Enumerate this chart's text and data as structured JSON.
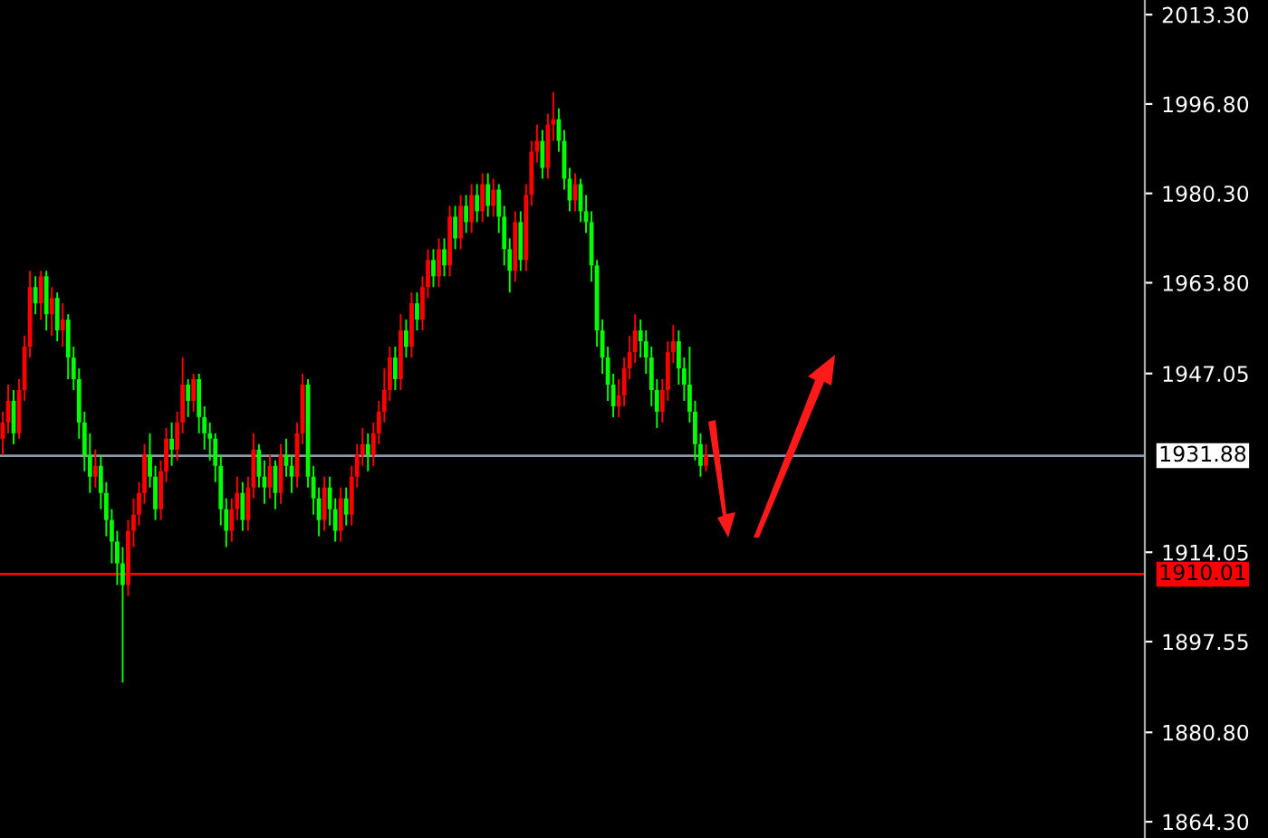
{
  "chart_data": {
    "type": "candlestick",
    "categories": [
      null,
      null,
      null,
      null,
      null,
      null,
      null,
      null,
      null,
      null,
      null,
      null,
      null,
      null,
      null,
      null,
      null,
      null,
      null,
      null,
      null,
      null,
      null,
      null,
      null,
      null,
      null,
      null,
      null,
      null,
      null,
      null,
      null,
      null,
      null,
      null,
      null,
      null,
      null,
      null,
      null,
      null,
      null,
      null,
      null,
      null,
      null,
      null,
      null,
      null,
      null,
      null,
      null,
      null,
      null,
      null,
      null,
      null,
      null,
      null,
      null,
      null,
      null,
      null,
      null,
      null,
      null,
      null,
      null,
      null,
      null,
      null,
      null,
      null,
      null,
      null,
      null,
      null,
      null,
      null,
      null,
      null,
      null,
      null,
      null,
      null,
      null,
      null,
      null,
      null,
      null,
      null,
      null,
      null,
      null,
      null,
      null,
      null,
      null,
      null,
      null,
      null,
      null,
      null,
      null,
      null,
      null,
      null,
      null,
      null,
      null,
      null,
      null,
      null,
      null,
      null,
      null,
      null,
      null,
      null,
      null,
      null,
      null,
      null,
      null,
      null,
      null,
      null,
      null,
      null,
      null,
      null,
      null,
      null,
      null,
      null,
      null,
      null,
      null,
      null,
      null,
      null,
      null,
      null,
      null,
      null,
      null,
      null,
      null,
      null,
      null,
      null,
      null,
      null,
      null,
      null,
      null,
      null,
      null,
      null,
      null,
      null,
      null,
      null,
      null,
      null,
      null,
      null,
      null,
      null,
      null,
      null,
      null,
      null,
      null,
      null,
      null,
      null,
      null,
      null,
      null,
      null,
      null,
      null,
      null,
      null,
      null,
      null,
      null,
      null,
      null,
      null,
      null,
      null,
      null,
      null,
      null,
      null,
      null,
      null,
      null,
      null,
      null,
      null,
      null,
      null,
      null,
      null,
      null,
      null
    ],
    "ohlc": [
      [
        1935,
        1940,
        1932,
        1938
      ],
      [
        1938,
        1945,
        1936,
        1942
      ],
      [
        1942,
        1944,
        1934,
        1936
      ],
      [
        1936,
        1946,
        1935,
        1944
      ],
      [
        1944,
        1954,
        1942,
        1952
      ],
      [
        1952,
        1966,
        1950,
        1963
      ],
      [
        1963,
        1965,
        1958,
        1960
      ],
      [
        1960,
        1966,
        1957,
        1965
      ],
      [
        1965,
        1966,
        1955,
        1958
      ],
      [
        1958,
        1963,
        1954,
        1961
      ],
      [
        1961,
        1962,
        1953,
        1955
      ],
      [
        1955,
        1960,
        1952,
        1957
      ],
      [
        1957,
        1958,
        1946,
        1950
      ],
      [
        1950,
        1952,
        1944,
        1946
      ],
      [
        1946,
        1948,
        1935,
        1938
      ],
      [
        1938,
        1940,
        1929,
        1932
      ],
      [
        1932,
        1936,
        1925,
        1928
      ],
      [
        1928,
        1933,
        1926,
        1930
      ],
      [
        1930,
        1932,
        1922,
        1925
      ],
      [
        1925,
        1927,
        1917,
        1920
      ],
      [
        1920,
        1922,
        1912,
        1916
      ],
      [
        1916,
        1918,
        1908,
        1912
      ],
      [
        1912,
        1915,
        1890,
        1908
      ],
      [
        1908,
        1920,
        1906,
        1918
      ],
      [
        1918,
        1924,
        1915,
        1921
      ],
      [
        1921,
        1927,
        1919,
        1925
      ],
      [
        1925,
        1934,
        1923,
        1932
      ],
      [
        1932,
        1936,
        1926,
        1928
      ],
      [
        1928,
        1930,
        1920,
        1922
      ],
      [
        1922,
        1931,
        1920,
        1929
      ],
      [
        1929,
        1937,
        1927,
        1935
      ],
      [
        1935,
        1938,
        1930,
        1933
      ],
      [
        1933,
        1940,
        1931,
        1938
      ],
      [
        1938,
        1950,
        1936,
        1945
      ],
      [
        1945,
        1946,
        1939,
        1942
      ],
      [
        1942,
        1947,
        1940,
        1946
      ],
      [
        1946,
        1947,
        1936,
        1939
      ],
      [
        1939,
        1941,
        1933,
        1936
      ],
      [
        1936,
        1938,
        1931,
        1935
      ],
      [
        1935,
        1936,
        1927,
        1930
      ],
      [
        1930,
        1932,
        1919,
        1922
      ],
      [
        1922,
        1924,
        1915,
        1918
      ],
      [
        1918,
        1924,
        1916,
        1922
      ],
      [
        1922,
        1928,
        1920,
        1925
      ],
      [
        1925,
        1927,
        1918,
        1920
      ],
      [
        1920,
        1928,
        1918,
        1926
      ],
      [
        1926,
        1936,
        1924,
        1933
      ],
      [
        1933,
        1934,
        1926,
        1928
      ],
      [
        1928,
        1931,
        1923,
        1926
      ],
      [
        1926,
        1932,
        1924,
        1930
      ],
      [
        1930,
        1931,
        1922,
        1925
      ],
      [
        1925,
        1934,
        1923,
        1932
      ],
      [
        1932,
        1935,
        1928,
        1930
      ],
      [
        1930,
        1932,
        1925,
        1928
      ],
      [
        1928,
        1938,
        1926,
        1936
      ],
      [
        1936,
        1947,
        1934,
        1945
      ],
      [
        1945,
        1946,
        1926,
        1928
      ],
      [
        1928,
        1930,
        1921,
        1924
      ],
      [
        1924,
        1926,
        1917,
        1920
      ],
      [
        1920,
        1928,
        1918,
        1926
      ],
      [
        1926,
        1928,
        1919,
        1922
      ],
      [
        1922,
        1924,
        1916,
        1918
      ],
      [
        1918,
        1926,
        1916,
        1924
      ],
      [
        1924,
        1926,
        1919,
        1921
      ],
      [
        1921,
        1930,
        1919,
        1928
      ],
      [
        1928,
        1934,
        1926,
        1932
      ],
      [
        1932,
        1937,
        1930,
        1934
      ],
      [
        1934,
        1936,
        1929,
        1932
      ],
      [
        1932,
        1938,
        1930,
        1936
      ],
      [
        1936,
        1942,
        1934,
        1940
      ],
      [
        1940,
        1948,
        1938,
        1944
      ],
      [
        1944,
        1952,
        1942,
        1950
      ],
      [
        1950,
        1952,
        1944,
        1946
      ],
      [
        1946,
        1958,
        1944,
        1955
      ],
      [
        1955,
        1957,
        1950,
        1952
      ],
      [
        1952,
        1962,
        1950,
        1960
      ],
      [
        1960,
        1962,
        1955,
        1957
      ],
      [
        1957,
        1965,
        1955,
        1963
      ],
      [
        1963,
        1970,
        1961,
        1968
      ],
      [
        1968,
        1970,
        1963,
        1965
      ],
      [
        1965,
        1972,
        1963,
        1970
      ],
      [
        1970,
        1972,
        1965,
        1967
      ],
      [
        1967,
        1978,
        1965,
        1976
      ],
      [
        1976,
        1978,
        1970,
        1972
      ],
      [
        1972,
        1980,
        1970,
        1978
      ],
      [
        1978,
        1980,
        1973,
        1975
      ],
      [
        1975,
        1982,
        1973,
        1980
      ],
      [
        1980,
        1982,
        1975,
        1977
      ],
      [
        1977,
        1984,
        1975,
        1982
      ],
      [
        1982,
        1984,
        1976,
        1978
      ],
      [
        1978,
        1983,
        1976,
        1981
      ],
      [
        1981,
        1982,
        1973,
        1976
      ],
      [
        1976,
        1978,
        1967,
        1970
      ],
      [
        1970,
        1972,
        1962,
        1966
      ],
      [
        1966,
        1977,
        1964,
        1975
      ],
      [
        1975,
        1977,
        1966,
        1968
      ],
      [
        1968,
        1982,
        1966,
        1980
      ],
      [
        1980,
        1990,
        1978,
        1988
      ],
      [
        1988,
        1993,
        1986,
        1990
      ],
      [
        1990,
        1992,
        1983,
        1985
      ],
      [
        1985,
        1995,
        1983,
        1993
      ],
      [
        1993,
        1999,
        1990,
        1994
      ],
      [
        1994,
        1996,
        1988,
        1990
      ],
      [
        1990,
        1992,
        1981,
        1983
      ],
      [
        1983,
        1985,
        1977,
        1979
      ],
      [
        1979,
        1984,
        1977,
        1982
      ],
      [
        1982,
        1983,
        1975,
        1977
      ],
      [
        1977,
        1980,
        1973,
        1975
      ],
      [
        1975,
        1977,
        1964,
        1967
      ],
      [
        1967,
        1968,
        1952,
        1955
      ],
      [
        1955,
        1957,
        1947,
        1950
      ],
      [
        1950,
        1952,
        1942,
        1945
      ],
      [
        1945,
        1947,
        1939,
        1941
      ],
      [
        1941,
        1946,
        1939,
        1943
      ],
      [
        1943,
        1950,
        1941,
        1948
      ],
      [
        1948,
        1954,
        1946,
        1951
      ],
      [
        1951,
        1958,
        1949,
        1955
      ],
      [
        1955,
        1957,
        1950,
        1953
      ],
      [
        1953,
        1955,
        1947,
        1950
      ],
      [
        1950,
        1952,
        1941,
        1944
      ],
      [
        1944,
        1946,
        1937,
        1940
      ],
      [
        1940,
        1946,
        1938,
        1944
      ],
      [
        1944,
        1953,
        1942,
        1951
      ],
      [
        1951,
        1956,
        1949,
        1953
      ],
      [
        1953,
        1955,
        1945,
        1948
      ],
      [
        1948,
        1950,
        1942,
        1945
      ],
      [
        1945,
        1952,
        1938,
        1940
      ],
      [
        1940,
        1942,
        1931,
        1934
      ],
      [
        1934,
        1936,
        1928,
        1930
      ],
      [
        1930,
        1934,
        1929,
        1932
      ],
      null,
      null,
      null,
      null,
      null,
      null,
      null,
      null,
      null,
      null,
      null,
      null,
      null,
      null,
      null,
      null,
      null,
      null,
      null,
      null,
      null,
      null,
      null,
      null,
      null,
      null,
      null,
      null,
      null,
      null,
      null,
      null,
      null,
      null,
      null,
      null,
      null,
      null,
      null,
      null,
      null,
      null,
      null,
      null,
      null,
      null,
      null,
      null,
      null,
      null,
      null,
      null,
      null,
      null,
      null,
      null,
      null,
      null,
      null,
      null,
      null,
      null,
      null,
      null,
      null,
      null,
      null,
      null,
      null,
      null,
      null,
      null,
      null,
      null,
      null,
      null,
      null,
      null,
      null,
      null
    ],
    "colors": [
      "#ff0000",
      "#ff0000",
      "#00ff00",
      "#ff0000",
      "#ff0000",
      "#ff0000",
      "#00ff00",
      "#ff0000",
      "#00ff00",
      "#ff0000",
      "#00ff00",
      "#ff0000",
      "#00ff00",
      "#00ff00",
      "#00ff00",
      "#00ff00",
      "#00ff00",
      "#ff0000",
      "#00ff00",
      "#00ff00",
      "#00ff00",
      "#00ff00",
      "#00ff00",
      "#ff0000",
      "#ff0000",
      "#ff0000",
      "#ff0000",
      "#00ff00",
      "#00ff00",
      "#ff0000",
      "#ff0000",
      "#00ff00",
      "#ff0000",
      "#ff0000",
      "#00ff00",
      "#ff0000",
      "#00ff00",
      "#00ff00",
      "#00ff00",
      "#00ff00",
      "#00ff00",
      "#00ff00",
      "#ff0000",
      "#ff0000",
      "#00ff00",
      "#ff0000",
      "#ff0000",
      "#00ff00",
      "#00ff00",
      "#ff0000",
      "#00ff00",
      "#ff0000",
      "#00ff00",
      "#00ff00",
      "#ff0000",
      "#ff0000",
      "#00ff00",
      "#00ff00",
      "#00ff00",
      "#ff0000",
      "#00ff00",
      "#00ff00",
      "#ff0000",
      "#00ff00",
      "#ff0000",
      "#ff0000",
      "#ff0000",
      "#00ff00",
      "#ff0000",
      "#ff0000",
      "#ff0000",
      "#ff0000",
      "#00ff00",
      "#ff0000",
      "#00ff00",
      "#ff0000",
      "#00ff00",
      "#ff0000",
      "#ff0000",
      "#00ff00",
      "#ff0000",
      "#00ff00",
      "#ff0000",
      "#00ff00",
      "#ff0000",
      "#00ff00",
      "#ff0000",
      "#00ff00",
      "#ff0000",
      "#00ff00",
      "#ff0000",
      "#00ff00",
      "#00ff00",
      "#00ff00",
      "#ff0000",
      "#00ff00",
      "#ff0000",
      "#ff0000",
      "#ff0000",
      "#00ff00",
      "#ff0000",
      "#ff0000",
      "#00ff00",
      "#00ff00",
      "#00ff00",
      "#ff0000",
      "#00ff00",
      "#00ff00",
      "#00ff00",
      "#00ff00",
      "#00ff00",
      "#00ff00",
      "#00ff00",
      "#ff0000",
      "#ff0000",
      "#ff0000",
      "#ff0000",
      "#00ff00",
      "#00ff00",
      "#00ff00",
      "#00ff00",
      "#ff0000",
      "#ff0000",
      "#ff0000",
      "#00ff00",
      "#00ff00",
      "#00ff00",
      "#00ff00",
      "#00ff00",
      "#ff0000",
      null,
      null,
      null,
      null,
      null,
      null,
      null,
      null,
      null,
      null,
      null,
      null,
      null,
      null,
      null,
      null,
      null,
      null,
      null,
      null,
      null,
      null,
      null,
      null,
      null,
      null,
      null,
      null,
      null,
      null,
      null,
      null,
      null,
      null,
      null,
      null,
      null,
      null,
      null,
      null,
      null,
      null,
      null,
      null,
      null,
      null,
      null,
      null,
      null,
      null,
      null,
      null,
      null,
      null,
      null,
      null,
      null,
      null,
      null,
      null,
      null,
      null,
      null,
      null,
      null,
      null,
      null,
      null,
      null,
      null,
      null,
      null,
      null,
      null,
      null,
      null,
      null,
      null,
      null,
      null
    ],
    "ylim": [
      1861.3,
      2016.0
    ],
    "yticks": [
      {
        "value": 1864.3,
        "label": "1864.30"
      },
      {
        "value": 1880.8,
        "label": "1880.80"
      },
      {
        "value": 1897.55,
        "label": "1897.55"
      },
      {
        "value": 1914.05,
        "label": "1914.05"
      },
      {
        "value": 1947.05,
        "label": "1947.05"
      },
      {
        "value": 1963.8,
        "label": "1963.80"
      },
      {
        "value": 1980.3,
        "label": "1980.30"
      },
      {
        "value": 1996.8,
        "label": "1996.80"
      },
      {
        "value": 2013.3,
        "label": "2013.30"
      }
    ],
    "ref_lines": [
      {
        "axis": "y",
        "value": 1931.88,
        "label": "1931.88",
        "color": "#8a9aaa"
      },
      {
        "axis": "y",
        "value": 1910.01,
        "label": "1910.01",
        "color": "#ff0000"
      }
    ],
    "grid": false,
    "legend": false
  }
}
